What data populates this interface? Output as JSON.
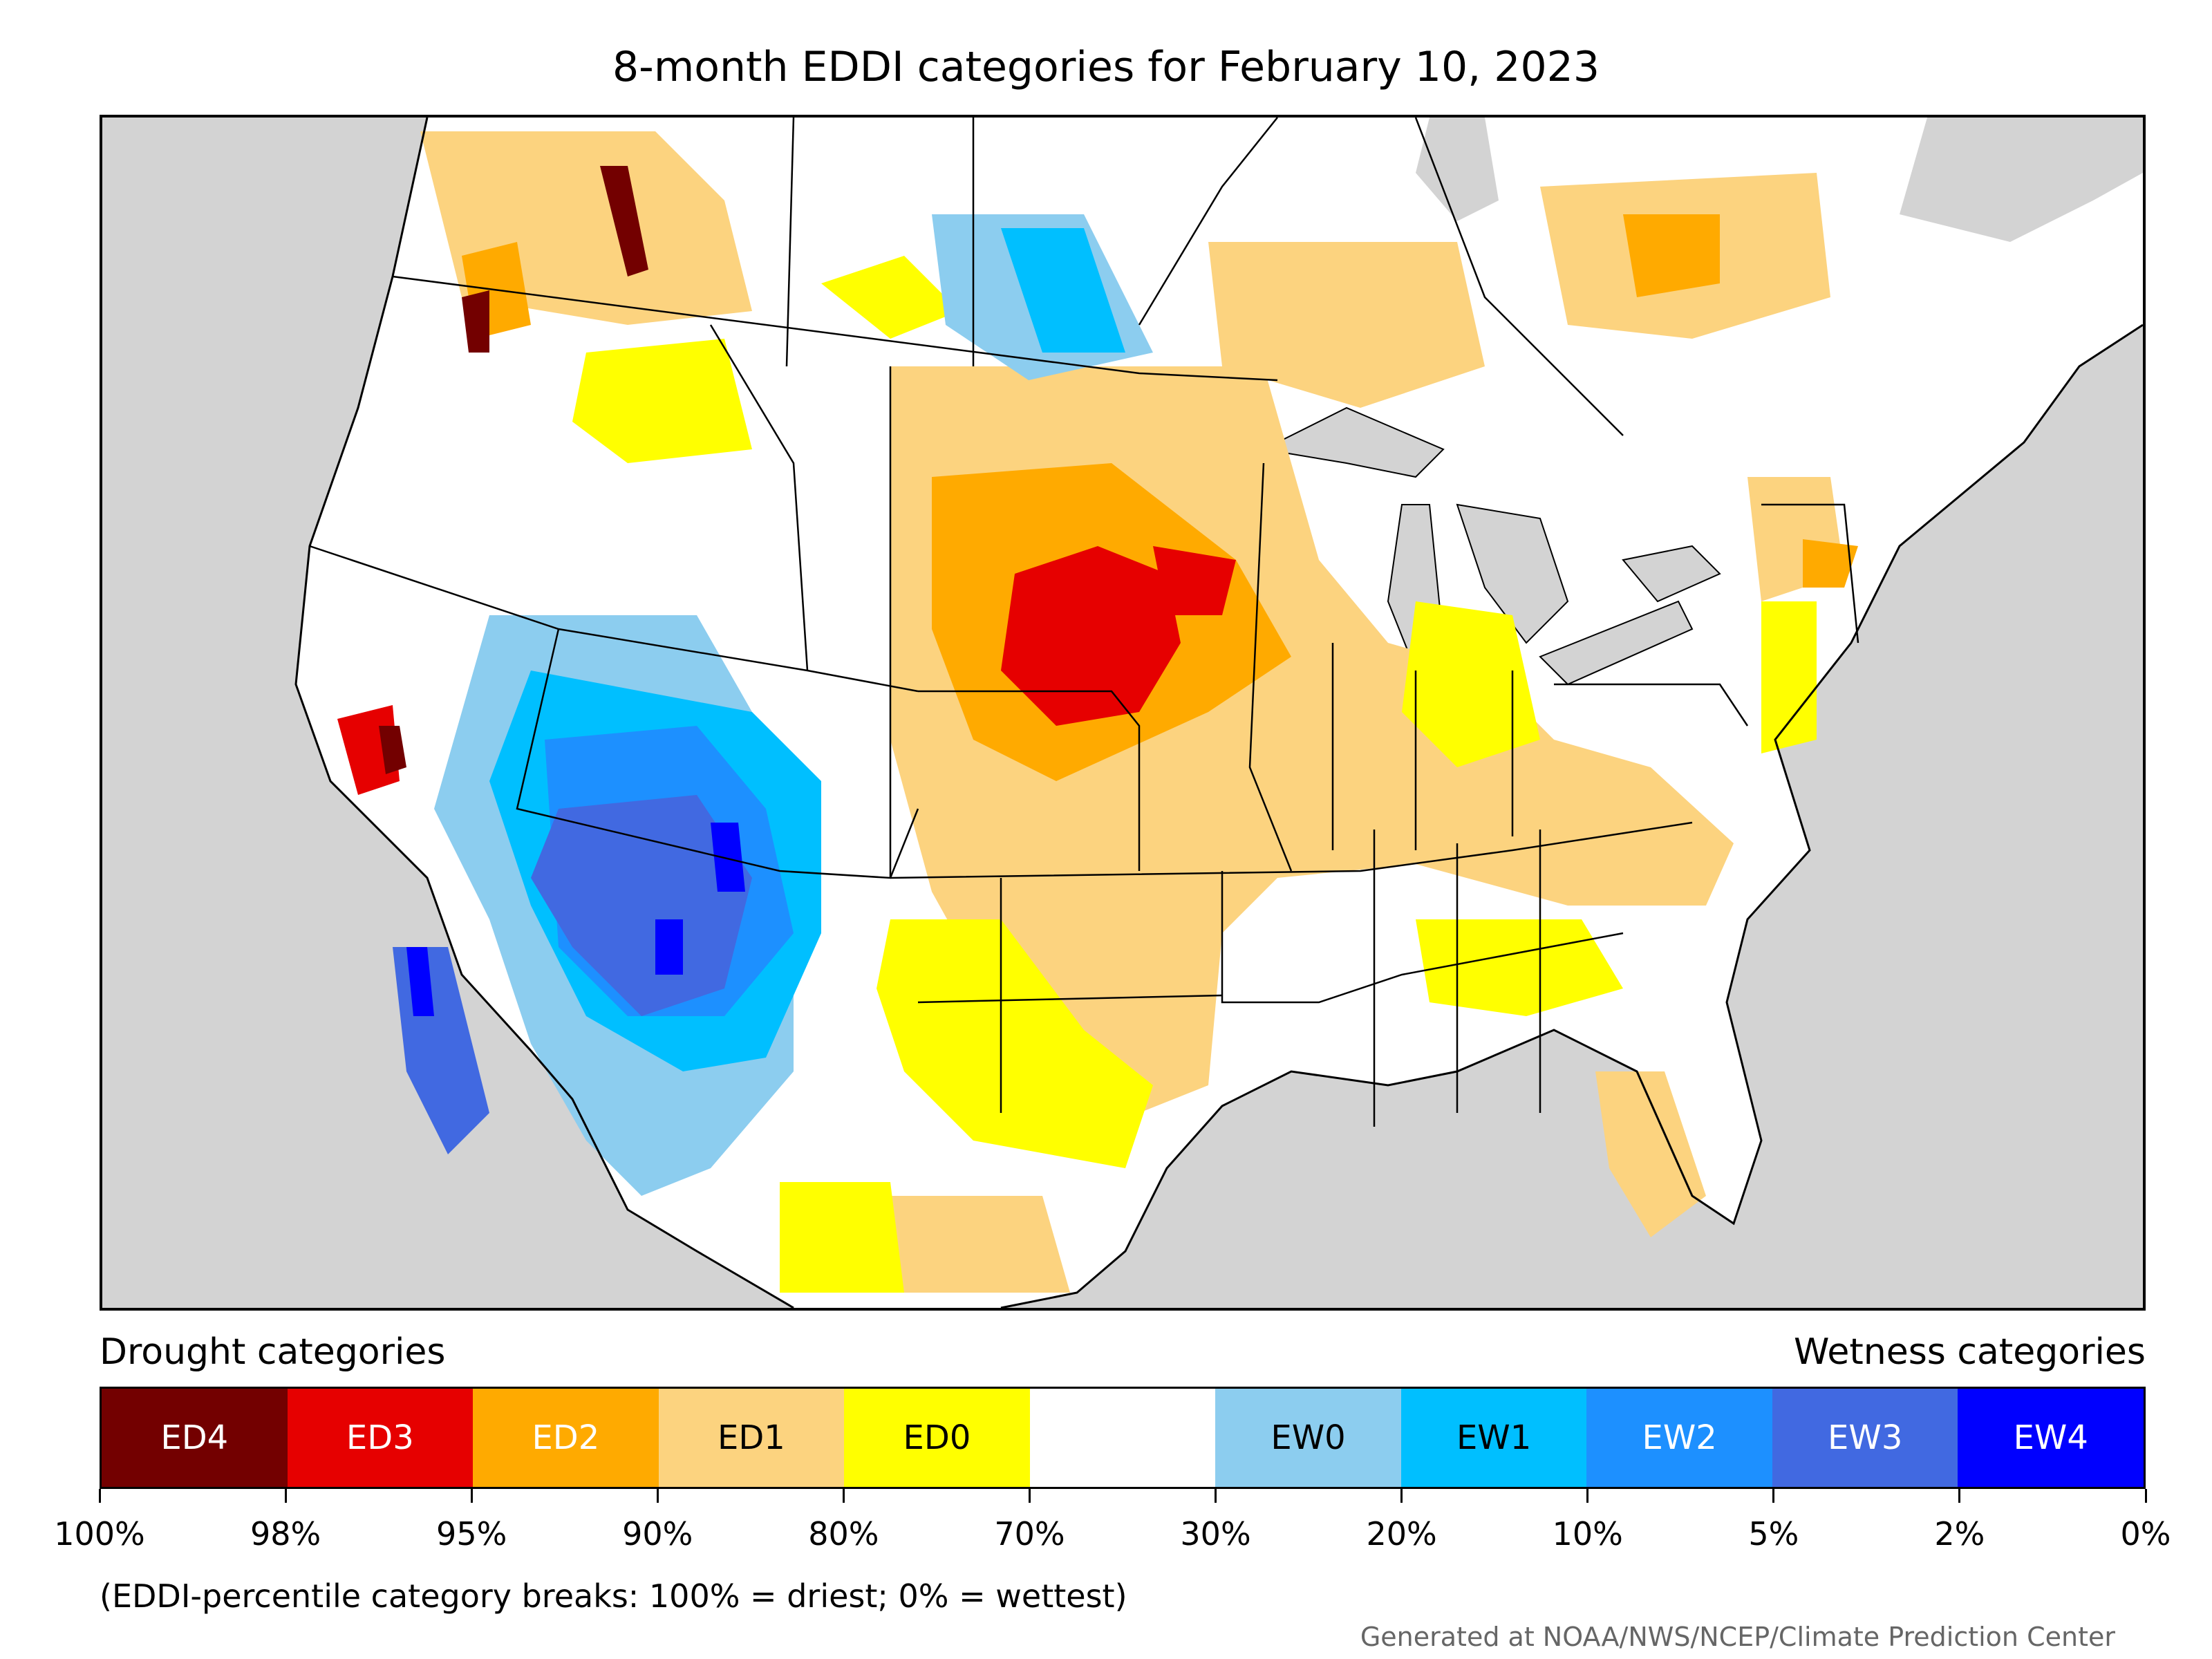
{
  "title": "8-month EDDI categories for February 10, 2023",
  "legend": {
    "drought_heading": "Drought categories",
    "wetness_heading": "Wetness categories",
    "categories": [
      {
        "label": "ED4",
        "color": "#730000",
        "text_color": "#ffffff"
      },
      {
        "label": "ED3",
        "color": "#e60000",
        "text_color": "#ffffff"
      },
      {
        "label": "ED2",
        "color": "#ffaa00",
        "text_color": "#ffffff"
      },
      {
        "label": "ED1",
        "color": "#fcd37f",
        "text_color": "#000000"
      },
      {
        "label": "ED0",
        "color": "#ffff00",
        "text_color": "#000000"
      },
      {
        "label": "",
        "color": "#ffffff",
        "text_color": "#000000"
      },
      {
        "label": "EW0",
        "color": "#8ccdef",
        "text_color": "#000000"
      },
      {
        "label": "EW1",
        "color": "#00bfff",
        "text_color": "#000000"
      },
      {
        "label": "EW2",
        "color": "#1d90ff",
        "text_color": "#ffffff"
      },
      {
        "label": "EW3",
        "color": "#4169e1",
        "text_color": "#ffffff"
      },
      {
        "label": "EW4",
        "color": "#0000ff",
        "text_color": "#ffffff"
      }
    ],
    "tick_labels": [
      "100%",
      "98%",
      "95%",
      "90%",
      "80%",
      "70%",
      "30%",
      "20%",
      "10%",
      "5%",
      "2%",
      "0%"
    ]
  },
  "note": "(EDDI-percentile category breaks: 100% = driest; 0% = wettest)",
  "credit": "Generated at NOAA/NWS/NCEP/Climate Prediction Center",
  "map": {
    "background_color": "#d3d3d3",
    "land_color": "#ffffff",
    "border_color": "#000000"
  }
}
